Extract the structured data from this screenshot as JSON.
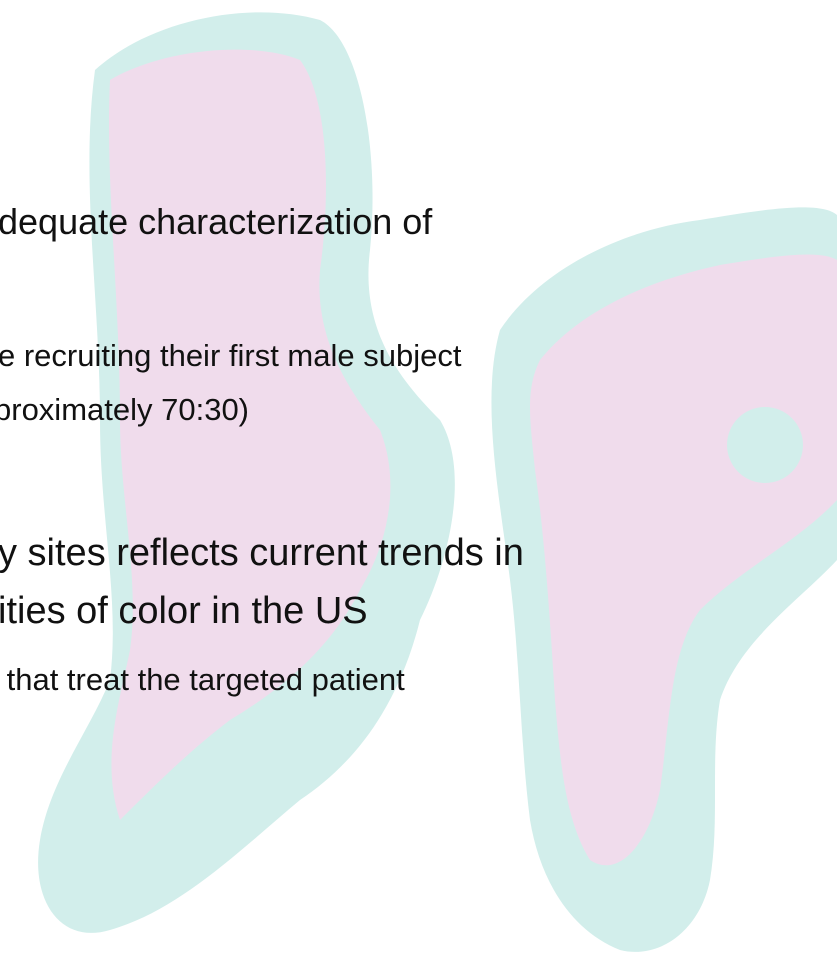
{
  "lines": [
    "dequate characterization of",
    "e recruiting their first male subject",
    "proximately 70:30)",
    "y sites reflects current trends in",
    "ities of color in the US",
    " that treat the targeted patient"
  ]
}
